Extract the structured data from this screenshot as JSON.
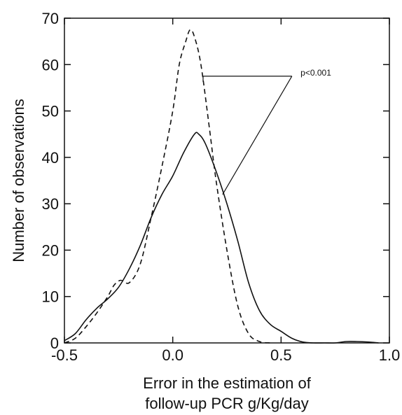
{
  "chart_data": {
    "type": "line",
    "title": "",
    "xlabel_lines": [
      "Error in the estimation of",
      "follow-up PCR g/Kg/day"
    ],
    "ylabel": "Number of observations",
    "xlim": [
      -0.5,
      1.0
    ],
    "ylim": [
      0,
      70
    ],
    "xticks": [
      -0.5,
      0.0,
      0.5,
      1.0
    ],
    "xtick_labels": [
      "-0.5",
      "0.0",
      "0.5",
      "1.0"
    ],
    "yticks": [
      0,
      10,
      20,
      30,
      40,
      50,
      60,
      70
    ],
    "ytick_labels": [
      "0",
      "10",
      "20",
      "30",
      "40",
      "50",
      "60",
      "70"
    ],
    "grid": false,
    "series": [
      {
        "style": "solid",
        "color": "#111111",
        "x": [
          -0.5,
          -0.45,
          -0.4,
          -0.35,
          -0.3,
          -0.25,
          -0.2,
          -0.15,
          -0.1,
          -0.05,
          0.0,
          0.05,
          0.1,
          0.12,
          0.15,
          0.2,
          0.25,
          0.3,
          0.35,
          0.4,
          0.45,
          0.5,
          0.55,
          0.6,
          0.65,
          0.7,
          0.75,
          0.8,
          0.85,
          0.9,
          0.95
        ],
        "y": [
          0.5,
          2,
          5,
          7.5,
          9.5,
          12,
          16,
          21,
          27,
          32,
          36,
          41,
          45,
          45,
          43,
          37,
          30,
          22,
          13,
          7,
          4,
          2.5,
          1,
          0.2,
          0,
          0,
          0,
          0.3,
          0.3,
          0.2,
          0
        ]
      },
      {
        "style": "dashed",
        "color": "#111111",
        "x": [
          -0.5,
          -0.45,
          -0.4,
          -0.35,
          -0.3,
          -0.27,
          -0.24,
          -0.2,
          -0.15,
          -0.1,
          -0.05,
          0.0,
          0.03,
          0.06,
          0.08,
          0.1,
          0.13,
          0.17,
          0.2,
          0.25,
          0.3,
          0.35,
          0.4,
          0.45
        ],
        "y": [
          0,
          1,
          3.5,
          6.5,
          10,
          12.5,
          13.5,
          13,
          17,
          27,
          38,
          50,
          60,
          65,
          67.5,
          66,
          60,
          46,
          35,
          20,
          8,
          2,
          0.3,
          0
        ]
      }
    ],
    "annotations": [
      {
        "text": "p<0.001",
        "x": 0.59,
        "y": 57.5
      }
    ],
    "bracket": {
      "top": [
        [
          0.14,
          57.5
        ],
        [
          0.55,
          57.5
        ]
      ],
      "apex": [
        0.55,
        57.5
      ],
      "to_dashed": [
        0.14,
        57.5
      ],
      "to_solid": [
        0.23,
        32
      ]
    }
  }
}
